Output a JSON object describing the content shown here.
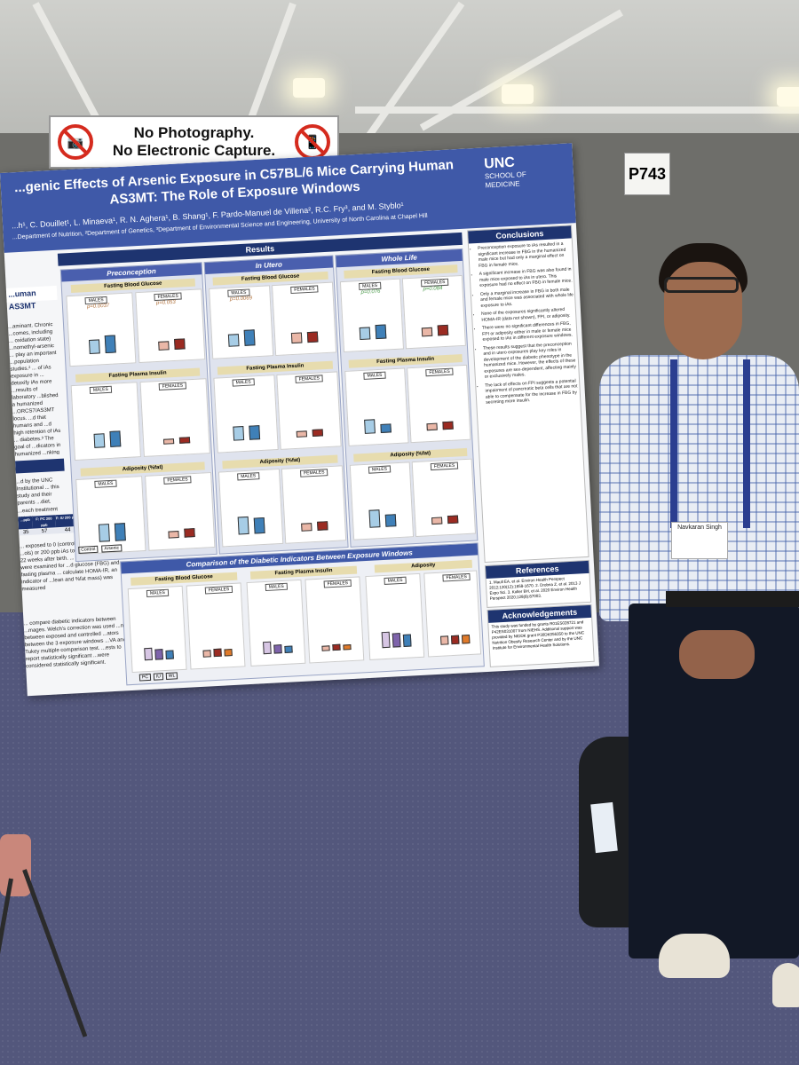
{
  "sign": {
    "line1": "No Photography.",
    "line2": "No Electronic Capture."
  },
  "booth_number": "P743",
  "poster": {
    "title": "...genic Effects of Arsenic Exposure in C57BL/6 Mice Carrying Human AS3MT: The Role of Exposure Windows",
    "authors": "...h¹, C. Douillet¹, L. Minaeva¹, R. N. Aghera¹, B. Shang¹, F. Pardo-Manuel de Villena², R.C. Fry³, and M. Styblo¹",
    "affiliations": "...Department of Nutrition, ²Department of Genetics, ³Department of Environmental Science and Engineering, University of North Carolina at Chapel Hill",
    "logo": {
      "name": "UNC",
      "line1": "SCHOOL OF",
      "line2": "MEDICINE"
    },
    "left_column": {
      "heading": "...uman AS3MT",
      "intro_text": "...aminant. Chronic ...comes, including ... oxidation state) ...nomethyl-arsenic ... play an important ...population studies.² ... of iAs exposure in ... detoxify iAs more ...results of laboratory ...blished a humanized ...ORCS7/AS3MT locus. ...d that humans and ...d high retention of iAs ... diabetes.³ The goal of ...dicators in humanized ...nking water (200 ppb, ...ows, prior to conception",
      "methods_text": "...d by the UNC Institutional ... this study and their parents ...diet.",
      "table_label": "...each treatment group:",
      "table_headers": [
        "...ppb",
        "F: PC 200 ppb",
        "F: IU 200 ppb",
        "F: WL 200 ppb"
      ],
      "table_values": [
        "35",
        "57",
        "44",
        "35"
      ],
      "exposure_text": "... exposed to 0 (controls) or 200 ... birth. ...ols) or 200 ppb iAs took place prior ... for 22 weeks after birth. ... weeks, all mice were examined for ...d glucose (FBG) and fasting plasma ... calculate HOMA-IR, an indicator of ...lean and %fat mass) was measured",
      "stats_text": "... compare diabetic indicators between ...mages. Welch's correction was used ...ntly between exposed and controlled ...ators between the 3 exposure windows ...VA and Tukey multiple comparison test. ...ests to report statistically significant ...were considered statistically significant."
    },
    "results": {
      "heading": "Results",
      "groups": [
        {
          "label": "Preconception",
          "p_values": [
            "p=0.0037",
            "p=0.053"
          ]
        },
        {
          "label": "In Utero",
          "p_values": [
            "p=0.0069",
            ""
          ]
        },
        {
          "label": "Whole Life",
          "p_values": [
            "p=0.076",
            "p=0.084"
          ]
        }
      ],
      "measures": [
        "Fasting Blood Glucose",
        "Fasting Plasma Insulin",
        "Adiposity (%fat)"
      ],
      "sexes": {
        "male": "MALES",
        "female": "FEMALES"
      },
      "legend": {
        "control": "Control",
        "arsenic": "Arsenic"
      },
      "comparison": {
        "heading": "Comparison of the Diabetic Indicators Between Exposure Windows",
        "measures": [
          "Fasting Blood Glucose",
          "Fasting Plasma Insulin",
          "Adiposity"
        ],
        "groups": [
          "PC",
          "IU",
          "WL"
        ]
      }
    },
    "conclusions": {
      "heading": "Conclusions",
      "items": [
        "Preconception exposure to iAs resulted in a significant increase in FBG in the humanized male mice but had only a marginal effect on FBG in female mice.",
        "A significant increase in FBG was also found in male mice exposed to iAs in utero. This exposure had no effect on FBG in female mice.",
        "Only a marginal increase in FBG in both male and female mice was associated with whole life exposure to iAs.",
        "None of the exposures significantly altered HOMA-IR (data not shown), FPI, or adiposity.",
        "There were no significant differences in FBG, FPI or adiposity either in male or female mice exposed to iAs in different exposure windows.",
        "These results suggest that the preconception and in utero exposures play key roles in development of the diabetic phenotype in the humanized mice. However, the effects of these exposures are sex-dependent, affecting mainly or exclusively males.",
        "The lack of effects on FPI suggests a potential impairment of pancreatic beta cells that are not able to compensate for the increase in FBG by secreting more insulin."
      ]
    },
    "references": {
      "heading": "References",
      "text": "1. Maull EA, et al. Environ Health Perspect 2012;120(12):1658-1670. 2. Drobna Z, et al. 2013 J Expo Sci. 3. Koller BH, et al. 2020 Environ Health Perspect 2020;128(8):87003."
    },
    "acknowledgements": {
      "heading": "Acknowledgements",
      "text": "This study was funded by grants R01ES028721 and P42ES031007 from NIEHS. Additional support was provided by NIDDK grant P30DK056350 to the UNC Nutrition Obesity Research Center and by the UNC Institute for Environmental Health Solutions."
    }
  },
  "person": {
    "badge_name": "Navkaran Singh"
  },
  "colors": {
    "poster_header": "#3f59a8",
    "section_bar": "#1e3470",
    "control_male": "#a7cde6",
    "arsenic_male": "#3f80b8",
    "control_female": "#eab7a7",
    "arsenic_female": "#9b2b22",
    "carpet": "#53577c",
    "sign_red": "#d52b1e"
  }
}
